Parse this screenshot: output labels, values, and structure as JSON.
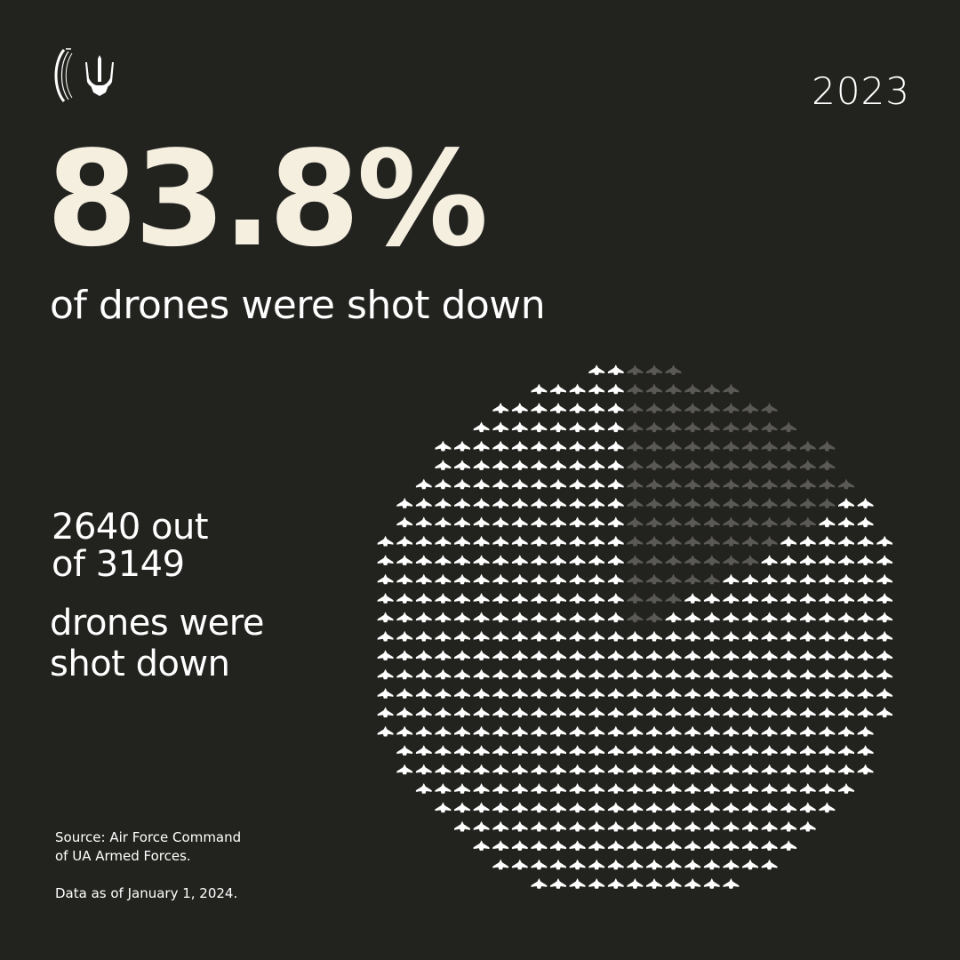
{
  "year": "2023",
  "headline": "83.8%",
  "subheadline": "of drones were shot down",
  "count_line1": "2640 out",
  "count_line2": "of 3149",
  "drones_line1": "drones were",
  "drones_line2": "shot down",
  "source_line1": "Source: Air Force Command",
  "source_line2": "of UA Armed Forces.",
  "as_of": "Data as of January 1, 2024.",
  "colors": {
    "background": "#22221f",
    "headline": "#f5efe0",
    "shot_down": "#ffffff",
    "not_shot_down": "#5a5955"
  },
  "chart_data": {
    "type": "pie",
    "style": "icon-grid",
    "icon": "drone-icon",
    "slices": [
      {
        "value": 2640
      },
      {
        "value": 509
      }
    ],
    "total": 3149,
    "percent_shot_down": 83.8
  }
}
